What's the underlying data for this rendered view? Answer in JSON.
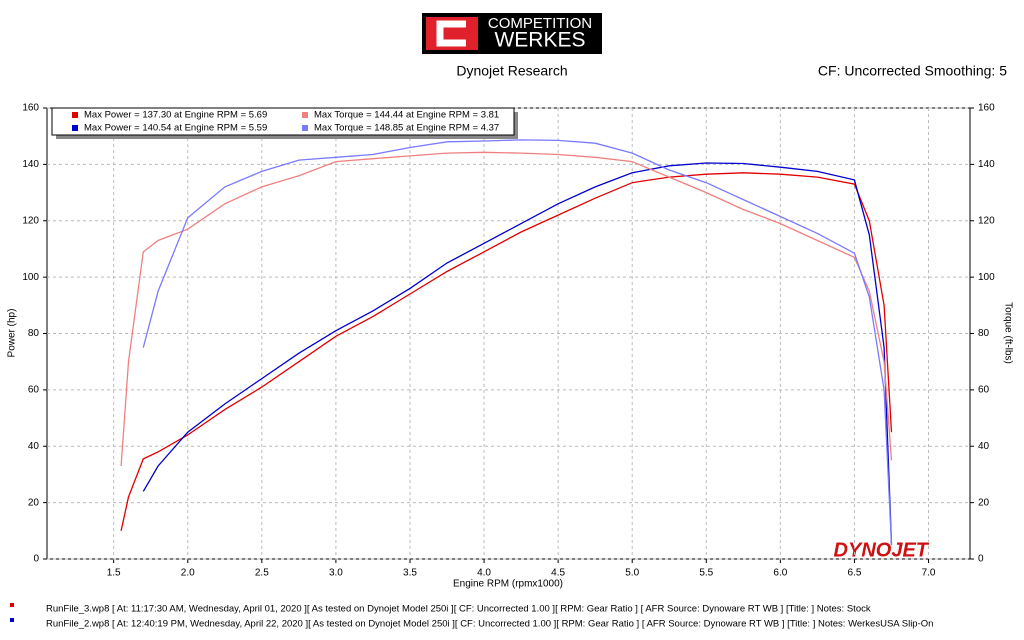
{
  "header": {
    "logo_top": "COMPETITION",
    "logo_bottom": "WERKES",
    "subtitle": "Dynojet Research",
    "settings": "CF: Uncorrected Smoothing: 5"
  },
  "chart_data": {
    "type": "line",
    "x_label": "Engine RPM (rpmx1000)",
    "y_label": "Power (hp)",
    "y2_label": "Torque (ft-lbs)",
    "watermark": "DYNOJET",
    "x": [
      1.55,
      1.6,
      1.7,
      1.8,
      2.0,
      2.25,
      2.5,
      2.75,
      3.0,
      3.25,
      3.5,
      3.75,
      4.0,
      4.25,
      4.5,
      4.75,
      5.0,
      5.25,
      5.5,
      5.75,
      6.0,
      6.25,
      6.5,
      6.6,
      6.7,
      6.75
    ],
    "series": [
      {
        "name": "Max Power = 137.30 at Engine RPM = 5.69",
        "color": "#e00000",
        "values": [
          10,
          22,
          35.5,
          38,
          44,
          53,
          61,
          70,
          79,
          86,
          94,
          102,
          109,
          116,
          122,
          128,
          133.5,
          135.5,
          136.5,
          137,
          136.5,
          135.5,
          133,
          120,
          90,
          45
        ]
      },
      {
        "name": "Max Power = 140.54 at Engine RPM = 5.59",
        "color": "#0000cc",
        "values": [
          null,
          null,
          24,
          33,
          45,
          55,
          64,
          73,
          81,
          88,
          96,
          105,
          112,
          119,
          126,
          132,
          137,
          139.5,
          140.5,
          140.3,
          139,
          137.5,
          134.5,
          115,
          75,
          5
        ]
      },
      {
        "name": "Max Torque = 144.44 at Engine RPM = 3.81",
        "color": "#f08080",
        "axis": "y2",
        "values": [
          33,
          70,
          109,
          113,
          117,
          126,
          132,
          136,
          141,
          142,
          143,
          144,
          144.3,
          144,
          143.5,
          142.5,
          141,
          135.5,
          130,
          124,
          119,
          113,
          107,
          95,
          70,
          35
        ]
      },
      {
        "name": "Max Torque = 148.85 at Engine RPM = 4.37",
        "color": "#7a7aff",
        "axis": "y2",
        "values": [
          null,
          null,
          75,
          95,
          121,
          132,
          137.5,
          141.5,
          142.5,
          143.5,
          146,
          148,
          148.3,
          148.7,
          148.5,
          147.5,
          144,
          138,
          133.5,
          127.5,
          121.5,
          115.5,
          108.5,
          93,
          60,
          5
        ]
      }
    ],
    "xlim": [
      1.05,
      7.28
    ],
    "xticks": [
      1.5,
      {
        "value": 2,
        "label": "2.0"
      },
      2.5,
      {
        "value": 3,
        "label": "3.0"
      },
      3.5,
      {
        "value": 4,
        "label": "4.0"
      },
      4.5,
      {
        "value": 5,
        "label": "5.0"
      },
      5.5,
      {
        "value": 6,
        "label": "6.0"
      },
      6.5,
      {
        "value": 7,
        "label": "7.0"
      }
    ],
    "ylim": [
      0,
      160
    ],
    "yticks": [
      0,
      20,
      40,
      60,
      80,
      100,
      120,
      140,
      160
    ],
    "y2lim": [
      0,
      160
    ],
    "y2ticks": [
      0,
      20,
      40,
      60,
      80,
      100,
      120,
      140,
      160
    ],
    "grid": true
  },
  "footer": {
    "runs": [
      {
        "color": "#e00000",
        "text": "RunFile_3.wp8 [ At: 11:17:30 AM, Wednesday, April 01, 2020 ][ As tested on Dynojet Model 250i ][ CF: Uncorrected 1.00 ][ RPM: Gear Ratio ] [ AFR Source: Dynoware RT WB ] [Title: ]  Notes: Stock"
      },
      {
        "color": "#0000cc",
        "text": "RunFile_2.wp8 [ At: 12:40:19 PM, Wednesday, April 22, 2020 ][ As tested on Dynojet Model 250i ][ CF: Uncorrected 1.00 ][ RPM: Gear Ratio ] [ AFR Source: Dynoware RT WB ] [Title: ]  Notes: WerkesUSA Slip-On"
      }
    ]
  }
}
